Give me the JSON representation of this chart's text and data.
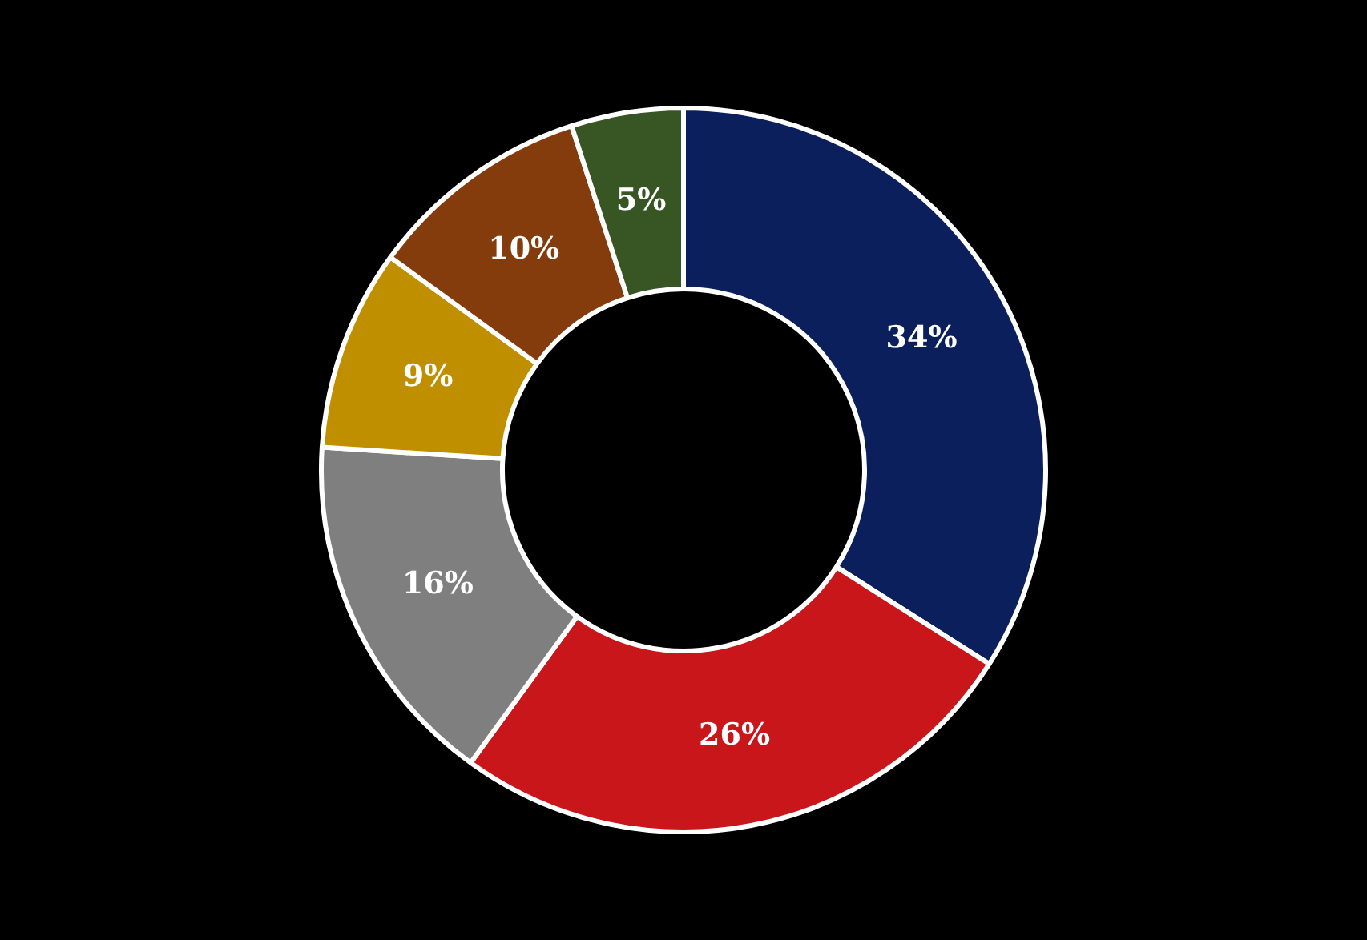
{
  "chart_data": {
    "type": "donut",
    "categories": [
      null,
      null,
      null,
      null,
      null,
      null
    ],
    "values": [
      34,
      26,
      16,
      9,
      10,
      5
    ],
    "colors": [
      "#0a1f5c",
      "#c8161a",
      "#7f7f7f",
      "#bf8f00",
      "#843c0c",
      "#375623"
    ],
    "value_labels": [
      "34%",
      "26%",
      "16%",
      "9%",
      "10%",
      "5%"
    ],
    "legend": false
  }
}
